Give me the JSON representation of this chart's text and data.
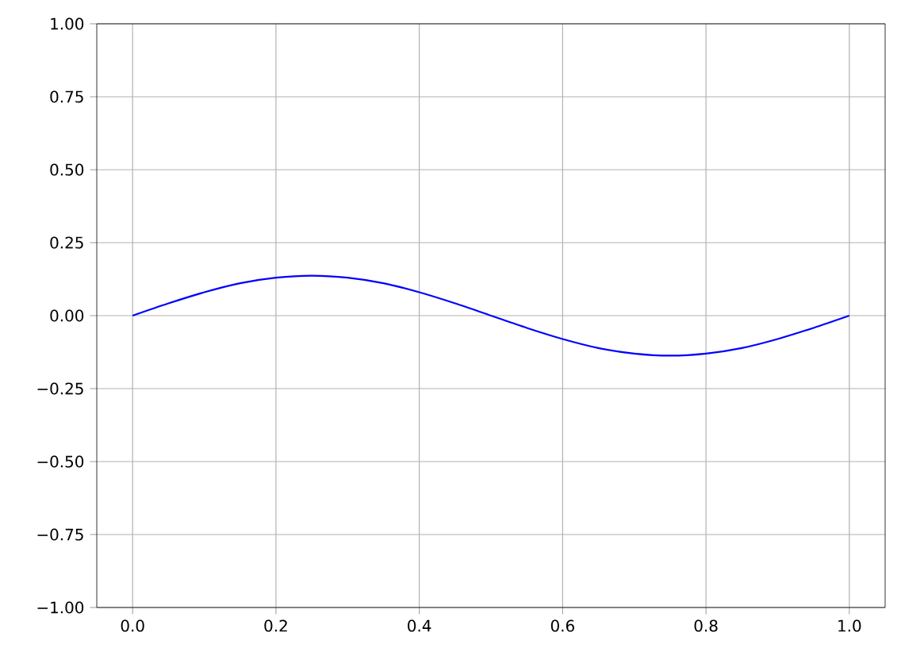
{
  "chart_data": {
    "type": "line",
    "x": [
      0,
      0.05,
      0.1,
      0.15,
      0.2,
      0.25,
      0.3,
      0.35,
      0.4,
      0.45,
      0.5,
      0.55,
      0.6,
      0.65,
      0.7,
      0.75,
      0.8,
      0.85,
      0.9,
      0.95,
      1
    ],
    "series": [
      {
        "color": "#0000ff",
        "values": [
          0,
          0.042,
          0.08,
          0.111,
          0.13,
          0.137,
          0.13,
          0.111,
          0.08,
          0.042,
          0,
          -0.042,
          -0.08,
          -0.111,
          -0.13,
          -0.137,
          -0.13,
          -0.111,
          -0.08,
          -0.042,
          0
        ]
      }
    ],
    "xlim": [
      -0.05,
      1.05
    ],
    "ylim": [
      -1,
      1
    ],
    "xticks": [
      {
        "value": 0,
        "label": "0.0"
      },
      {
        "value": 0.2,
        "label": "0.2"
      },
      {
        "value": 0.4,
        "label": "0.4"
      },
      {
        "value": 0.6,
        "label": "0.6"
      },
      {
        "value": 0.8,
        "label": "0.8"
      },
      {
        "value": 1,
        "label": "1.0"
      }
    ],
    "yticks": [
      {
        "value": -1,
        "label": "−1.00"
      },
      {
        "value": -0.75,
        "label": "−0.75"
      },
      {
        "value": -0.5,
        "label": "−0.50"
      },
      {
        "value": -0.25,
        "label": "−0.25"
      },
      {
        "value": 0,
        "label": "0.00"
      },
      {
        "value": 0.25,
        "label": "0.25"
      },
      {
        "value": 0.5,
        "label": "0.50"
      },
      {
        "value": 0.75,
        "label": "0.75"
      },
      {
        "value": 1,
        "label": "1.00"
      }
    ],
    "grid": true,
    "marker": "none",
    "line_style": "solid"
  }
}
